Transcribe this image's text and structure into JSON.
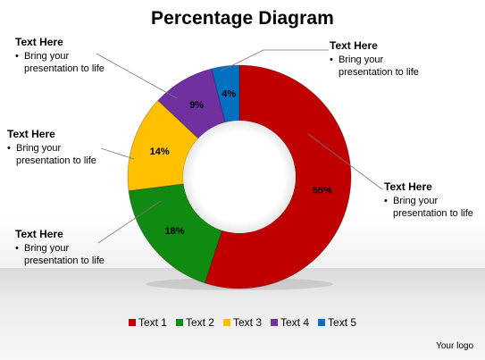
{
  "title": "Percentage Diagram",
  "chart_data": {
    "type": "pie",
    "title": "Percentage Diagram",
    "categories": [
      "Text 1",
      "Text 2",
      "Text 3",
      "Text 4",
      "Text 5"
    ],
    "values": [
      55,
      18,
      14,
      9,
      4
    ],
    "labels": [
      "55%",
      "18%",
      "14%",
      "9%",
      "4%"
    ],
    "colors": [
      "#c00000",
      "#118a11",
      "#ffc000",
      "#7030a0",
      "#0070c0"
    ],
    "donut": true,
    "legend": "bottom"
  },
  "callouts": [
    {
      "heading": "Text Here",
      "bullet": "Bring your",
      "bullet2": "presentation to life"
    },
    {
      "heading": "Text Here",
      "bullet": "Bring your",
      "bullet2": "presentation to life"
    },
    {
      "heading": "Text Here",
      "bullet": "Bring your",
      "bullet2": "presentation to life"
    },
    {
      "heading": "Text Here",
      "bullet": "Bring your",
      "bullet2": "presentation to life"
    },
    {
      "heading": "Text Here",
      "bullet": "Bring your",
      "bullet2": "presentation to life"
    }
  ],
  "footer": {
    "logo": "Your logo"
  }
}
